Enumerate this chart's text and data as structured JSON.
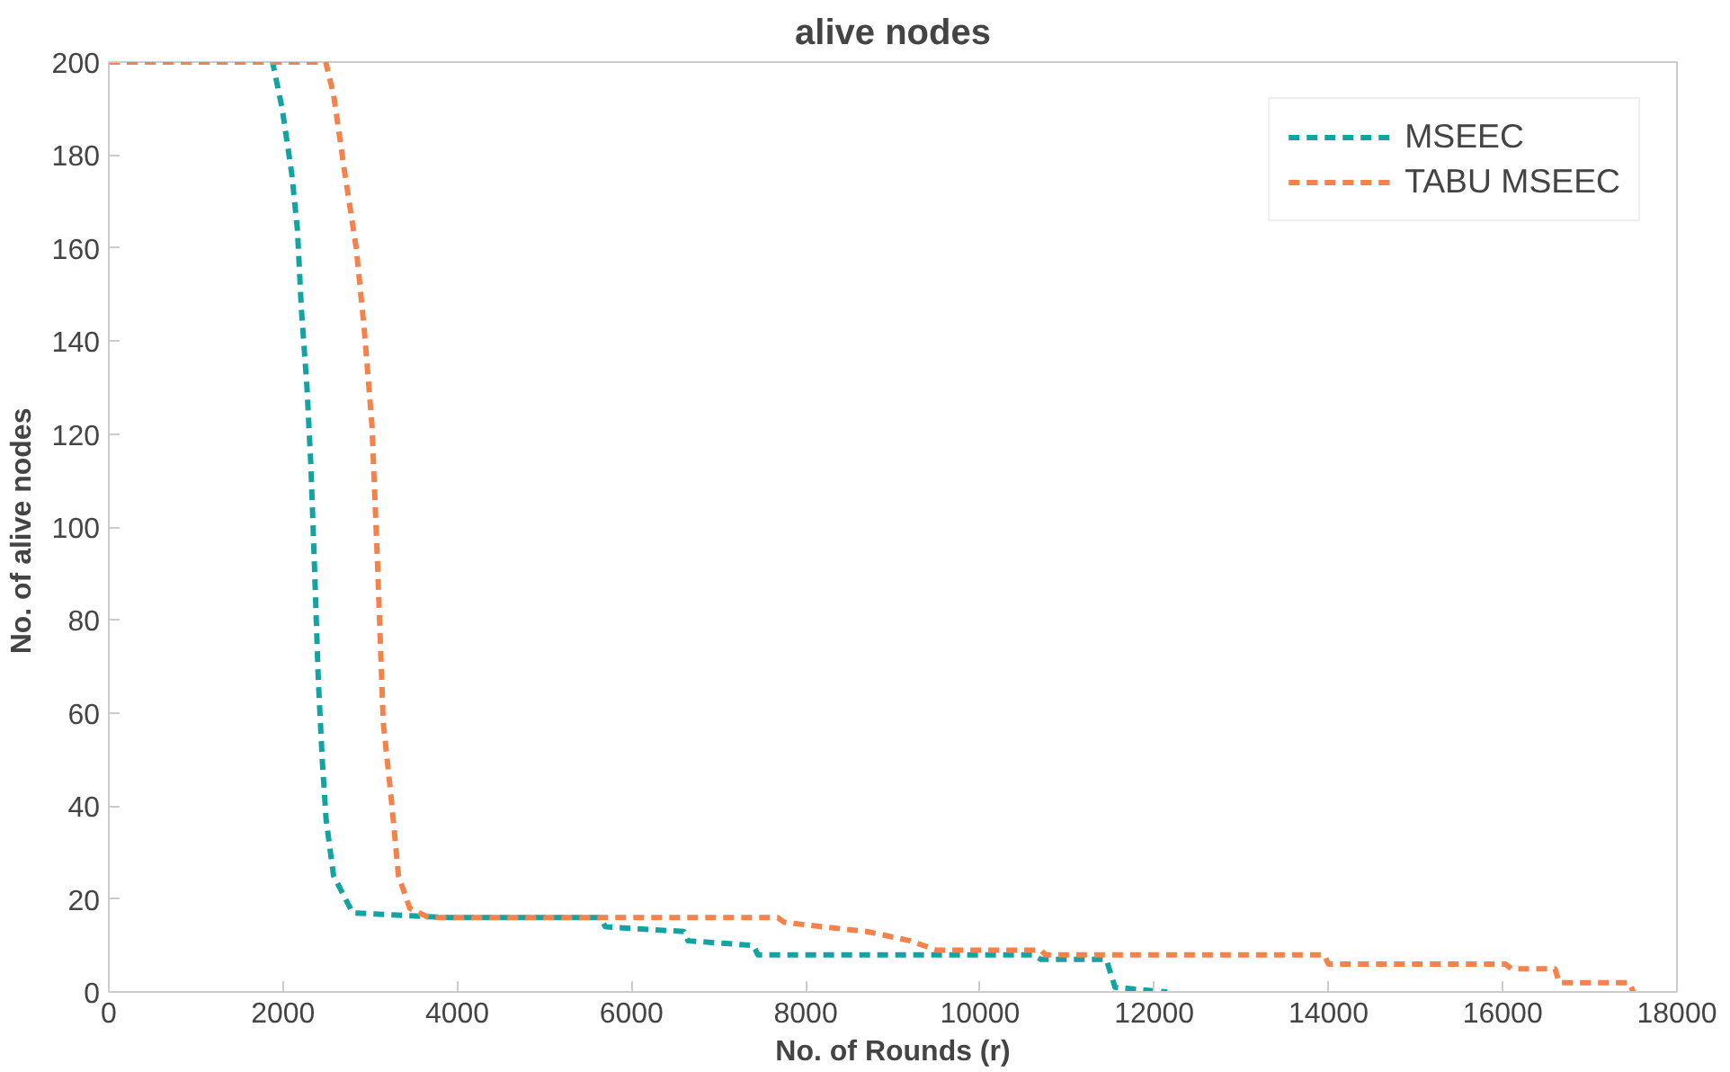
{
  "chart_data": {
    "type": "line",
    "title": "alive nodes",
    "xlabel": "No. of Rounds (r)",
    "ylabel": "No. of  alive nodes",
    "xlim": [
      0,
      18000
    ],
    "xticks": [
      0,
      2000,
      4000,
      6000,
      8000,
      10000,
      12000,
      14000,
      16000,
      18000
    ],
    "ylim": [
      0,
      200
    ],
    "yticks": [
      0,
      20,
      40,
      60,
      80,
      100,
      120,
      140,
      160,
      180,
      200
    ],
    "grid": false,
    "legend": "top right",
    "line_style": "dashed",
    "series": [
      {
        "name": "MSEEC",
        "color": "#14a3a3",
        "x": [
          0,
          1880,
          1990,
          2100,
          2165,
          2210,
          2275,
          2320,
          2360,
          2405,
          2450,
          2495,
          2580,
          2690,
          2800,
          3900,
          5640,
          5700,
          6600,
          6650,
          7400,
          7450,
          10600,
          10700,
          11450,
          11550,
          12150
        ],
        "values": [
          200,
          200,
          190,
          176,
          164,
          147,
          130,
          113,
          92,
          67,
          50,
          37,
          25,
          21,
          17,
          16,
          16,
          14,
          13,
          11,
          10,
          8,
          8,
          7,
          7,
          1,
          0
        ]
      },
      {
        "name": "TABU MSEEC",
        "color": "#f5824a",
        "x": [
          0,
          2490,
          2580,
          2710,
          2840,
          2930,
          3020,
          3085,
          3150,
          3240,
          3325,
          3455,
          3675,
          7680,
          7750,
          8200,
          8700,
          9200,
          9500,
          10700,
          10750,
          13950,
          14000,
          16030,
          16100,
          16600,
          16650,
          17450,
          17500
        ],
        "values": [
          200,
          200,
          193,
          176,
          160,
          143,
          122,
          92,
          58,
          42,
          25,
          18,
          16,
          16,
          15,
          14,
          13,
          11,
          9,
          9,
          8,
          8,
          6,
          6,
          5,
          5,
          2,
          2,
          0
        ]
      }
    ]
  }
}
